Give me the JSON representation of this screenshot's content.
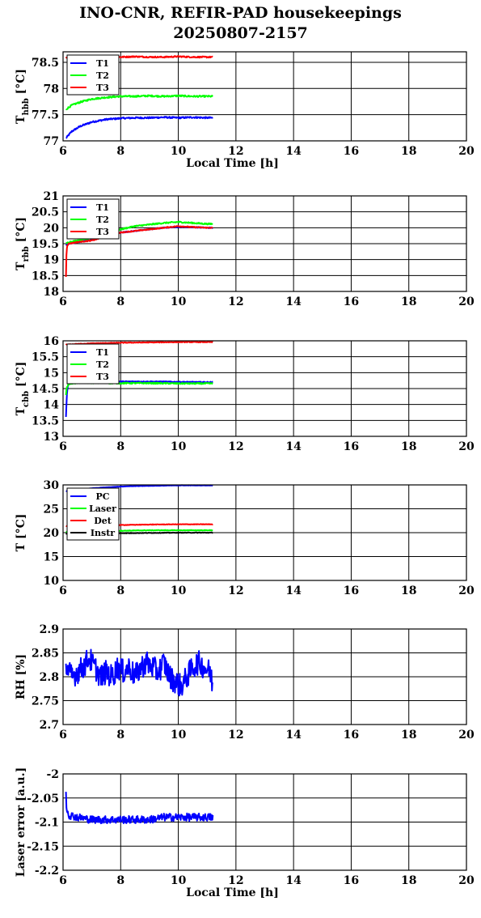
{
  "title": {
    "line1": "INO-CNR, REFIR-PAD housekeepings",
    "line2": "20250807-2157"
  },
  "chart_data": [
    {
      "type": "line",
      "ylabel_main": "T",
      "ylabel_sub": "hbb",
      "ylabel_rest": " [°C]",
      "xlabel": "Local Time [h]",
      "xlim": [
        6,
        20
      ],
      "ylim": [
        77,
        78.7
      ],
      "xticks": [
        6,
        8,
        10,
        12,
        14,
        16,
        18,
        20
      ],
      "yticks": [
        77,
        77.5,
        78,
        78.5
      ],
      "ytick_labels": [
        "77",
        "77.5",
        "78",
        "78.5"
      ],
      "grid": true,
      "legend": "top-left",
      "series": [
        {
          "name": "T1",
          "color": "#0000ff",
          "x": [
            6.1,
            6.3,
            6.6,
            7.0,
            7.5,
            8.0,
            8.5,
            9.0,
            9.5,
            10.0,
            10.5,
            11.0,
            11.2
          ],
          "y": [
            77.05,
            77.18,
            77.28,
            77.36,
            77.41,
            77.43,
            77.44,
            77.44,
            77.45,
            77.44,
            77.45,
            77.44,
            77.44
          ],
          "noise": 0.015
        },
        {
          "name": "T2",
          "color": "#00ff00",
          "x": [
            6.1,
            6.3,
            6.6,
            7.0,
            7.5,
            8.0,
            8.5,
            9.0,
            9.5,
            10.0,
            10.5,
            11.0,
            11.2
          ],
          "y": [
            77.6,
            77.68,
            77.74,
            77.8,
            77.83,
            77.85,
            77.85,
            77.86,
            77.85,
            77.86,
            77.85,
            77.85,
            77.85
          ],
          "noise": 0.015
        },
        {
          "name": "T3",
          "color": "#ff0000",
          "x": [
            6.1,
            6.5,
            7.0,
            7.5,
            8.0,
            8.5,
            9.0,
            9.5,
            10.0,
            10.5,
            11.0,
            11.2
          ],
          "y": [
            78.58,
            78.59,
            78.6,
            78.6,
            78.6,
            78.61,
            78.6,
            78.6,
            78.61,
            78.6,
            78.6,
            78.6
          ],
          "noise": 0.012
        }
      ]
    },
    {
      "type": "line",
      "ylabel_main": "T",
      "ylabel_sub": "rbb",
      "ylabel_rest": " [°C]",
      "xlabel": "",
      "xlim": [
        6,
        20
      ],
      "ylim": [
        18,
        21
      ],
      "xticks": [
        6,
        8,
        10,
        12,
        14,
        16,
        18,
        20
      ],
      "yticks": [
        18,
        18.5,
        19,
        19.5,
        20,
        20.5,
        21
      ],
      "ytick_labels": [
        "18",
        "18.5",
        "19",
        "19.5",
        "20",
        "20.5",
        "21"
      ],
      "grid": true,
      "legend": "top-left",
      "series": [
        {
          "name": "T1",
          "color": "#0000ff",
          "x": [
            6.1,
            6.2,
            6.5,
            7.0,
            7.5,
            8.0,
            8.5,
            9.0,
            9.5,
            10.0,
            10.5,
            11.0,
            11.2
          ],
          "y": [
            19.45,
            19.5,
            19.55,
            19.62,
            19.75,
            19.85,
            19.9,
            19.95,
            20.0,
            20.03,
            20.02,
            20.0,
            20.0
          ],
          "noise": 0.015
        },
        {
          "name": "T2",
          "color": "#00ff00",
          "x": [
            6.1,
            6.2,
            6.5,
            7.0,
            7.5,
            8.0,
            8.5,
            9.0,
            9.5,
            10.0,
            10.5,
            11.0,
            11.2
          ],
          "y": [
            19.5,
            19.55,
            19.6,
            19.68,
            19.8,
            19.95,
            20.05,
            20.1,
            20.15,
            20.18,
            20.15,
            20.12,
            20.12
          ],
          "noise": 0.02
        },
        {
          "name": "T3",
          "color": "#ff0000",
          "x": [
            6.1,
            6.12,
            6.15,
            6.2,
            6.5,
            7.0,
            7.5,
            8.0,
            8.5,
            9.0,
            9.5,
            10.0,
            10.5,
            11.0,
            11.2
          ],
          "y": [
            18.45,
            19.3,
            19.45,
            19.5,
            19.55,
            19.6,
            19.72,
            19.85,
            19.9,
            19.95,
            20.0,
            20.05,
            20.02,
            20.0,
            20.0
          ],
          "noise": 0.015
        }
      ]
    },
    {
      "type": "line",
      "ylabel_main": "T",
      "ylabel_sub": "cbb",
      "ylabel_rest": " [°C]",
      "xlabel": "",
      "xlim": [
        6,
        20
      ],
      "ylim": [
        13,
        16
      ],
      "xticks": [
        6,
        8,
        10,
        12,
        14,
        16,
        18,
        20
      ],
      "yticks": [
        13,
        13.5,
        14,
        14.5,
        15,
        15.5,
        16
      ],
      "ytick_labels": [
        "13",
        "13.5",
        "14",
        "14.5",
        "15",
        "15.5",
        "16"
      ],
      "grid": true,
      "legend": "top-left",
      "series": [
        {
          "name": "T1",
          "color": "#0000ff",
          "x": [
            6.1,
            6.13,
            6.17,
            6.25,
            6.5,
            7.0,
            8.0,
            9.0,
            10.0,
            11.0,
            11.2
          ],
          "y": [
            13.6,
            14.3,
            14.6,
            14.68,
            14.7,
            14.72,
            14.72,
            14.72,
            14.71,
            14.7,
            14.7
          ],
          "noise": 0.015
        },
        {
          "name": "T2",
          "color": "#00ff00",
          "x": [
            6.1,
            6.13,
            6.2,
            6.5,
            7.0,
            8.0,
            9.0,
            10.0,
            11.0,
            11.2
          ],
          "y": [
            14.3,
            14.55,
            14.65,
            14.68,
            14.68,
            14.67,
            14.67,
            14.66,
            14.66,
            14.66
          ],
          "noise": 0.02
        },
        {
          "name": "T3",
          "color": "#ff0000",
          "x": [
            6.1,
            6.5,
            7.0,
            8.0,
            9.0,
            10.0,
            11.0,
            11.2
          ],
          "y": [
            15.88,
            15.9,
            15.92,
            15.94,
            15.95,
            15.96,
            15.96,
            15.96
          ],
          "noise": 0.01
        }
      ]
    },
    {
      "type": "line",
      "ylabel_main": "T [°C]",
      "ylabel_sub": "",
      "ylabel_rest": "",
      "xlabel": "",
      "xlim": [
        6,
        20
      ],
      "ylim": [
        10,
        30
      ],
      "xticks": [
        6,
        8,
        10,
        12,
        14,
        16,
        18,
        20
      ],
      "yticks": [
        10,
        15,
        20,
        25,
        30
      ],
      "ytick_labels": [
        "10",
        "15",
        "20",
        "25",
        "30"
      ],
      "grid": true,
      "legend": "top-left",
      "series": [
        {
          "name": "PC",
          "color": "#0000ff",
          "x": [
            6.1,
            6.5,
            7.0,
            7.5,
            8.0,
            8.5,
            9.0,
            9.5,
            10.0,
            10.5,
            11.0,
            11.2
          ],
          "y": [
            28.7,
            29.0,
            29.3,
            29.5,
            29.65,
            29.75,
            29.8,
            29.85,
            29.9,
            29.9,
            29.9,
            29.9
          ],
          "noise": 0.03
        },
        {
          "name": "Laser",
          "color": "#00ff00",
          "x": [
            6.1,
            7.0,
            8.0,
            9.0,
            10.0,
            11.0,
            11.2
          ],
          "y": [
            20.2,
            20.3,
            20.4,
            20.5,
            20.5,
            20.5,
            20.5
          ],
          "noise": 0.06
        },
        {
          "name": "Det",
          "color": "#ff0000",
          "x": [
            6.1,
            7.0,
            8.0,
            9.0,
            10.0,
            11.0,
            11.2
          ],
          "y": [
            21.4,
            21.5,
            21.6,
            21.7,
            21.75,
            21.75,
            21.75
          ],
          "noise": 0.05
        },
        {
          "name": "Instr",
          "color": "#000000",
          "x": [
            6.1,
            7.0,
            8.0,
            9.0,
            10.0,
            11.0,
            11.2
          ],
          "y": [
            19.8,
            19.85,
            19.9,
            19.95,
            20.0,
            20.0,
            20.0
          ],
          "noise": 0.05
        }
      ]
    },
    {
      "type": "line",
      "ylabel_main": "RH [%]",
      "ylabel_sub": "",
      "ylabel_rest": "",
      "xlabel": "",
      "xlim": [
        6,
        20
      ],
      "ylim": [
        2.7,
        2.9
      ],
      "xticks": [
        6,
        8,
        10,
        12,
        14,
        16,
        18,
        20
      ],
      "yticks": [
        2.7,
        2.75,
        2.8,
        2.85,
        2.9
      ],
      "ytick_labels": [
        "2.7",
        "2.75",
        "2.8",
        "2.85",
        "2.9"
      ],
      "grid": true,
      "legend": "none",
      "series": [
        {
          "name": "",
          "color": "#0000ff",
          "x": [
            6.1,
            6.3,
            6.5,
            6.7,
            6.9,
            7.1,
            7.3,
            7.5,
            7.7,
            7.9,
            8.1,
            8.3,
            8.5,
            8.7,
            8.9,
            9.1,
            9.3,
            9.5,
            9.7,
            9.9,
            10.1,
            10.3,
            10.5,
            10.7,
            10.9,
            11.1,
            11.2
          ],
          "y": [
            2.82,
            2.8,
            2.81,
            2.82,
            2.84,
            2.82,
            2.8,
            2.81,
            2.8,
            2.82,
            2.81,
            2.82,
            2.8,
            2.82,
            2.83,
            2.82,
            2.81,
            2.83,
            2.8,
            2.79,
            2.78,
            2.8,
            2.82,
            2.83,
            2.82,
            2.81,
            2.78
          ],
          "noise": 0.025
        }
      ]
    },
    {
      "type": "line",
      "ylabel_main": "Laser error [a.u.]",
      "ylabel_sub": "",
      "ylabel_rest": "",
      "xlabel": "Local Time [h]",
      "xlim": [
        6,
        20
      ],
      "ylim": [
        -2.2,
        -2
      ],
      "xticks": [
        6,
        8,
        10,
        12,
        14,
        16,
        18,
        20
      ],
      "yticks": [
        -2.2,
        -2.15,
        -2.1,
        -2.05,
        -2
      ],
      "ytick_labels": [
        "-2.2",
        "-2.15",
        "-2.1",
        "-2.05",
        "-2"
      ],
      "grid": true,
      "legend": "none",
      "series": [
        {
          "name": "",
          "color": "#0000ff",
          "x": [
            6.1,
            6.12,
            6.2,
            6.5,
            7.0,
            7.5,
            8.0,
            8.5,
            9.0,
            9.5,
            10.0,
            10.5,
            11.0,
            11.2
          ],
          "y": [
            -2.035,
            -2.07,
            -2.085,
            -2.09,
            -2.095,
            -2.095,
            -2.095,
            -2.095,
            -2.095,
            -2.09,
            -2.09,
            -2.09,
            -2.09,
            -2.09
          ],
          "noise": 0.008
        }
      ]
    }
  ]
}
